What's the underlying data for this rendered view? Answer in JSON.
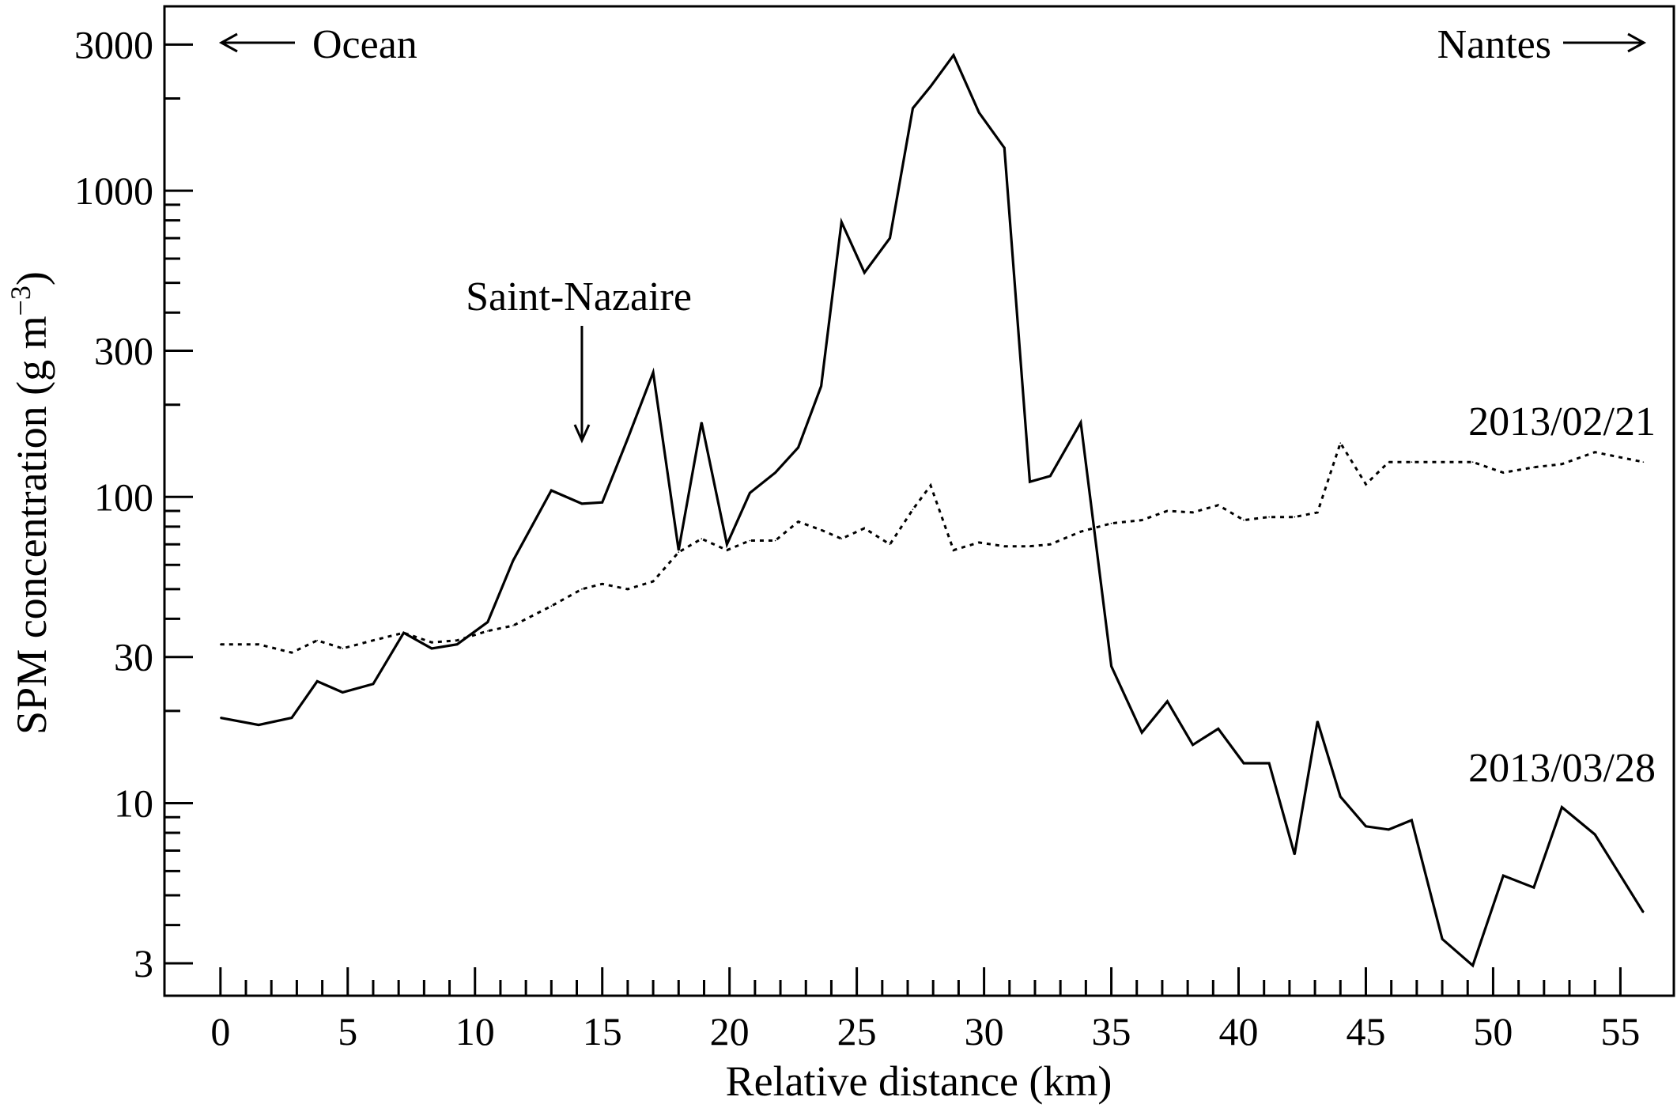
{
  "chart_data": {
    "type": "line",
    "xlabel": "Relative distance (km)",
    "ylabel": "SPM concentration (g m",
    "ylabel_unit_exponent": "−3",
    "ylabel_close": ")",
    "yscale": "log",
    "xlim": [
      -2.2,
      57.1
    ],
    "ylim": [
      2.35,
      4000
    ],
    "x_ticks": [
      0,
      5,
      10,
      15,
      20,
      25,
      30,
      35,
      40,
      45,
      50,
      55
    ],
    "x_tick_labels": [
      "0",
      "5",
      "10",
      "15",
      "20",
      "25",
      "30",
      "35",
      "40",
      "45",
      "50",
      "55"
    ],
    "x_minor_step": 1,
    "y_ticks": [
      3,
      10,
      30,
      100,
      300,
      1000,
      3000
    ],
    "y_tick_labels": [
      "3",
      "10",
      "30",
      "100",
      "300",
      "1000",
      "3000"
    ],
    "grid": false,
    "series": [
      {
        "name": "2013/03/28",
        "style": "solid",
        "color": "#000000",
        "x": [
          0,
          1.5,
          2.8,
          3.8,
          4.8,
          6,
          7.2,
          8.3,
          9.3,
          10.5,
          11.5,
          13,
          14.2,
          15,
          16,
          17,
          18,
          18.9,
          19.9,
          20.8,
          21.8,
          22.7,
          23.6,
          24.4,
          25.3,
          26.3,
          27.2,
          27.9,
          28.8,
          29.8,
          30.8,
          31.8,
          32.6,
          33.8,
          35,
          36.2,
          37.2,
          38.2,
          39.2,
          40.2,
          41.2,
          42.2,
          43.1,
          44,
          45,
          45.9,
          46.8,
          48,
          49.2,
          50.4,
          51.6,
          52.7,
          54,
          55.9
        ],
        "y": [
          19,
          18,
          19,
          25,
          23,
          24.5,
          36,
          32,
          33,
          39,
          62,
          105,
          95,
          96,
          155,
          255,
          67,
          175,
          70,
          103,
          120,
          145,
          230,
          790,
          540,
          700,
          1860,
          2190,
          2770,
          1800,
          1380,
          112,
          117,
          175,
          28,
          17,
          21.5,
          15.5,
          17.5,
          13.5,
          13.5,
          6.8,
          18.5,
          10.5,
          8.4,
          8.2,
          8.8,
          3.6,
          2.95,
          5.8,
          5.3,
          9.7,
          7.9,
          4.4
        ]
      },
      {
        "name": "2013/02/21",
        "style": "dotted",
        "color": "#000000",
        "x": [
          0,
          1.5,
          2.8,
          3.8,
          4.8,
          6,
          7.2,
          8.3,
          9.3,
          10.5,
          11.5,
          13,
          14.2,
          15,
          16,
          17,
          18,
          18.9,
          19.9,
          20.8,
          21.8,
          22.7,
          23.6,
          24.4,
          25.3,
          26.3,
          27.2,
          27.9,
          28.8,
          29.8,
          30.8,
          31.8,
          32.6,
          33.8,
          35,
          36.2,
          37.2,
          38.2,
          39.2,
          40.2,
          41.2,
          42.2,
          43.1,
          44,
          45,
          45.9,
          46.8,
          48,
          49.2,
          50.4,
          51.6,
          52.7,
          54,
          55.9
        ],
        "y": [
          33,
          33,
          31,
          34,
          32,
          34,
          36,
          33.5,
          34,
          36.5,
          38,
          44,
          50,
          52,
          50,
          53,
          66,
          73,
          67,
          72,
          72,
          83,
          78,
          73,
          79,
          70,
          91,
          109,
          67,
          71,
          69,
          69,
          70,
          77,
          82,
          84,
          90,
          89,
          94,
          84,
          86,
          86,
          89,
          150,
          110,
          130,
          130,
          130,
          130,
          120,
          125,
          128,
          140,
          130
        ]
      }
    ],
    "annotations": {
      "ocean_arrow": "Ocean",
      "nantes_arrow": "Nantes",
      "saint_nazaire": "Saint-Nazaire",
      "saint_nazaire_km": 14.2,
      "label_series_a": "2013/02/21",
      "label_series_b": "2013/03/28"
    }
  }
}
